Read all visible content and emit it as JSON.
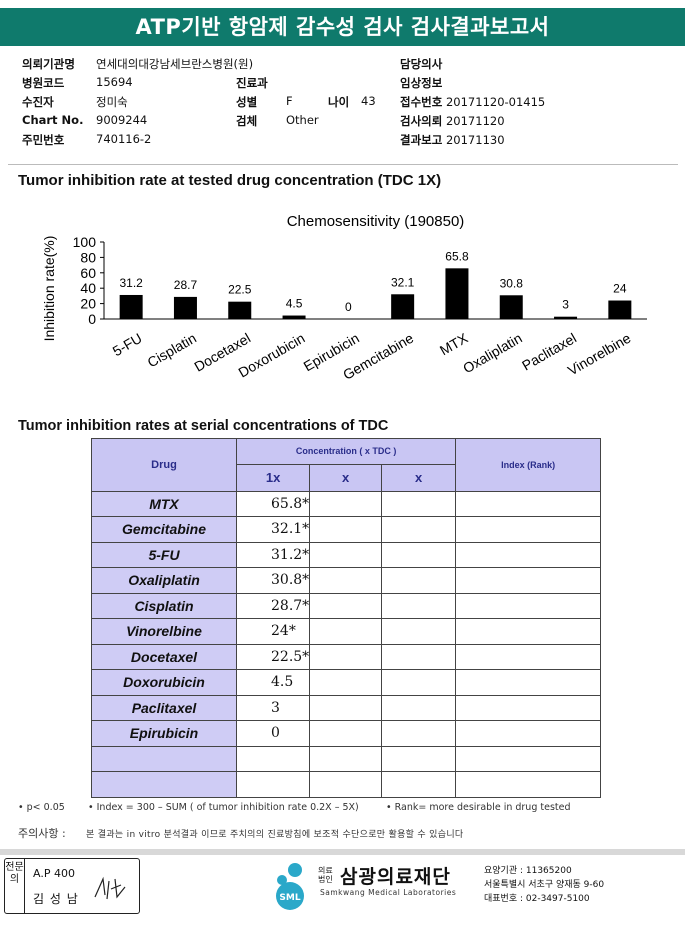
{
  "header": {
    "title": "ATP기반 항암제 감수성 검사 검사결과보고서"
  },
  "info": {
    "institution_label": "의뢰기관명",
    "institution": "연세대의대강남세브란스병원(원)",
    "hospital_code_label": "병원코드",
    "hospital_code": "15694",
    "department_label": "진료과",
    "department": "",
    "patient_label": "수진자",
    "patient": "정미숙",
    "sex_label": "성별",
    "sex": "F",
    "age_label": "나이",
    "age": "43",
    "chart_no_label": "Chart No.",
    "chart_no": "9009244",
    "specimen_label": "검체",
    "specimen": "Other",
    "resident_no_label": "주민번호",
    "resident_no": "740116-2",
    "doctor_label": "담당의사",
    "doctor": "",
    "clinical_info_label": "임상정보",
    "clinical_info": "",
    "receipt_no_label": "접수번호",
    "receipt_no": "20171120-01415",
    "request_date_label": "검사의뢰",
    "request_date": "20171120",
    "report_date_label": "결과보고",
    "report_date": "20171130"
  },
  "section1_title": "Tumor inhibition rate at tested drug concentration (TDC 1X)",
  "chart_data": {
    "type": "bar",
    "title": "Chemosensitivity (190850)",
    "ylabel": "Inhibition rate(%)",
    "xlabel": "",
    "ylim": [
      0,
      100
    ],
    "yticks": [
      "0",
      "20",
      "40",
      "60",
      "80",
      "100"
    ],
    "categories": [
      "5-FU",
      "Cisplatin",
      "Docetaxel",
      "Doxorubicin",
      "Epirubicin",
      "Gemcitabine",
      "MTX",
      "Oxaliplatin",
      "Paclitaxel",
      "Vinorelbine"
    ],
    "values": [
      31.2,
      28.7,
      22.5,
      4.5,
      0,
      32.1,
      65.8,
      30.8,
      3,
      24
    ],
    "value_labels": [
      "31.2",
      "28.7",
      "22.5",
      "4.5",
      "0",
      "32.1",
      "65.8",
      "30.8",
      "3",
      "24"
    ],
    "bar_color": "#000000",
    "grid": false
  },
  "section2_title": "Tumor inhibition rates at serial concentrations of TDC",
  "table": {
    "drug_header": "Drug",
    "concentration_header": "Concentration ( x TDC )",
    "index_header": "Index (Rank)",
    "sub_headers": [
      "1x",
      "x",
      "x"
    ],
    "rows": [
      {
        "drug": "MTX",
        "v1": "65.8*"
      },
      {
        "drug": "Gemcitabine",
        "v1": "32.1*"
      },
      {
        "drug": "5-FU",
        "v1": "31.2*"
      },
      {
        "drug": "Oxaliplatin",
        "v1": "30.8*"
      },
      {
        "drug": "Cisplatin",
        "v1": "28.7*"
      },
      {
        "drug": "Vinorelbine",
        "v1": "24*"
      },
      {
        "drug": "Docetaxel",
        "v1": "22.5*"
      },
      {
        "drug": "Doxorubicin",
        "v1": "4.5"
      },
      {
        "drug": "Paclitaxel",
        "v1": "3"
      },
      {
        "drug": "Epirubicin",
        "v1": "0"
      }
    ]
  },
  "footnotes": {
    "p": "• p< 0.05",
    "index": "• Index = 300 – SUM ( of tumor inhibition rate 0.2X – 5X)",
    "rank": "• Rank= more desirable in drug tested",
    "caution_label": "주의사항 :",
    "caution": "본 결과는 in vitro 분석결과 이므로 주치의의 진료방침에 보조적 수단으로만 활용할 수 있습니다"
  },
  "footer": {
    "side_label": "전문의",
    "ap": "A.P 400",
    "signer": "김 성 남",
    "org_prefix_top": "의료",
    "org_prefix_bottom": "법인",
    "org_name": "삼광의료재단",
    "org_english": "Samkwang Medical Laboratories",
    "logo_text": "SML",
    "care_no": "요양기관 : 11365200",
    "address": "서울특별시 서초구 양재동 9-60",
    "phone": "대표번호 : 02-3497-5100"
  }
}
